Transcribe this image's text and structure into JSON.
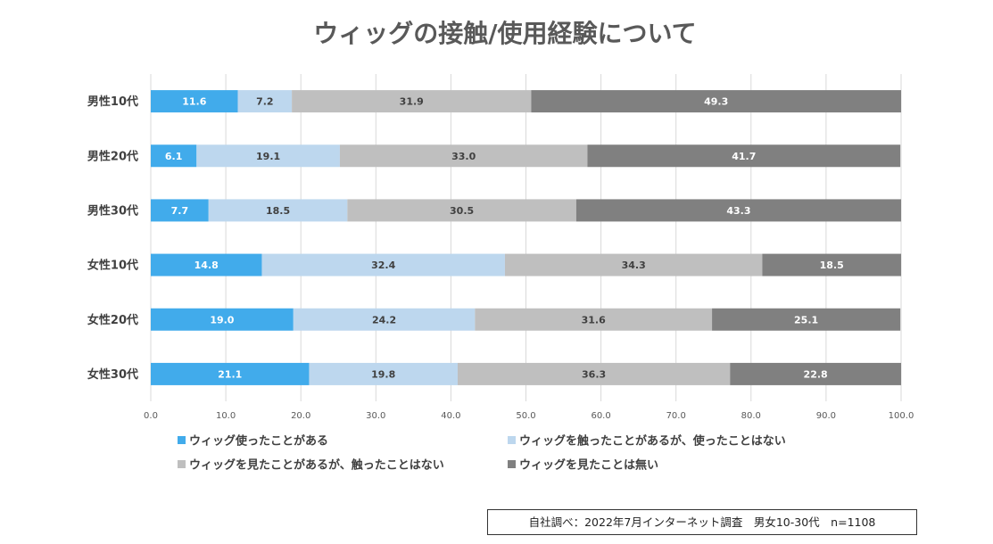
{
  "chart_data": {
    "type": "bar",
    "orientation": "horizontal",
    "stacked": true,
    "title": "ウィッグの接触/使用経験について",
    "categories": [
      "男性10代",
      "男性20代",
      "男性30代",
      "女性10代",
      "女性20代",
      "女性30代"
    ],
    "series": [
      {
        "name": "ウィッグ使ったことがある",
        "color": "#41ABEB",
        "label_color": "#ffffff",
        "values": [
          11.6,
          6.1,
          7.7,
          14.8,
          19.0,
          21.1
        ]
      },
      {
        "name": "ウィッグを触ったことがあるが、使ったことはない",
        "color": "#BDD7EE",
        "label_color": "#404040",
        "values": [
          7.2,
          19.1,
          18.5,
          32.4,
          24.2,
          19.8
        ]
      },
      {
        "name": "ウィッグを見たことがあるが、触ったことはない",
        "color": "#BFBFBF",
        "label_color": "#404040",
        "values": [
          31.9,
          33.0,
          30.5,
          34.3,
          31.6,
          36.3
        ]
      },
      {
        "name": "ウィッグを見たことは無い",
        "color": "#808080",
        "label_color": "#ffffff",
        "values": [
          49.3,
          41.7,
          43.3,
          18.5,
          25.1,
          22.8
        ]
      }
    ],
    "xlim": [
      0,
      100
    ],
    "xticks": [
      "0.0",
      "10.0",
      "20.0",
      "30.0",
      "40.0",
      "50.0",
      "60.0",
      "70.0",
      "80.0",
      "90.0",
      "100.0"
    ],
    "grid": true,
    "legend_position": "bottom"
  },
  "note": "自社調べ：2022年7月インターネット調査　男女10-30代　n=1108"
}
